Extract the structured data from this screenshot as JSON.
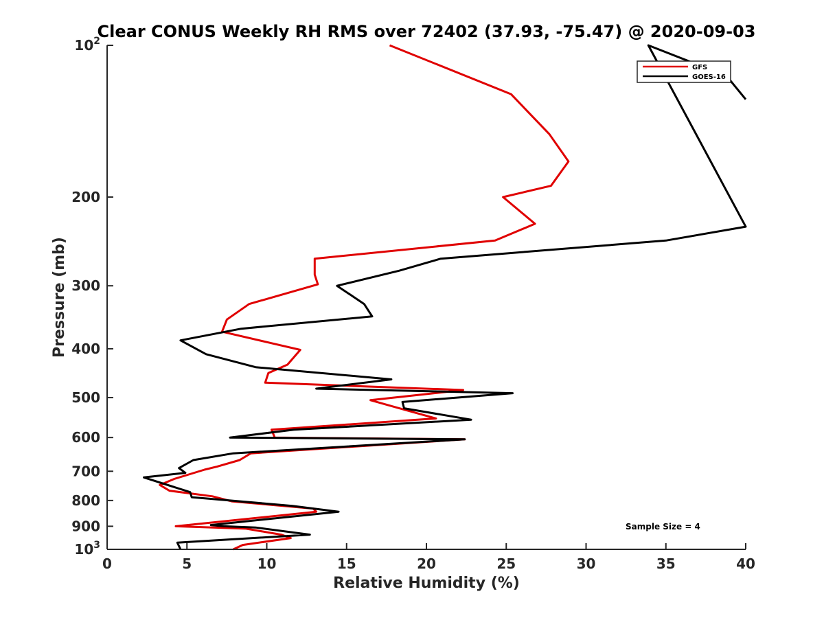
{
  "chart_data": {
    "type": "line",
    "title": "Clear CONUS Weekly RH RMS over 72402 (37.93, -75.47) @ 2020-09-03",
    "xlabel": "Relative Humidity (%)",
    "ylabel": "Pressure (mb)",
    "xlim": [
      0,
      40
    ],
    "ylim": [
      100,
      1000
    ],
    "yscale": "log",
    "y_reversed": true,
    "grid": false,
    "legend_position": "top-right",
    "x_ticks": [
      0,
      5,
      10,
      15,
      20,
      25,
      30,
      35,
      40
    ],
    "x_tick_labels": [
      "0",
      "5",
      "10",
      "15",
      "20",
      "25",
      "30",
      "35",
      "40"
    ],
    "y_ticks": [
      100,
      200,
      300,
      400,
      500,
      600,
      700,
      800,
      900,
      1000
    ],
    "y_tick_labels": [
      {
        "value": 100,
        "base": "10",
        "exp": "2"
      },
      {
        "value": 200,
        "base": "200",
        "exp": ""
      },
      {
        "value": 300,
        "base": "300",
        "exp": ""
      },
      {
        "value": 400,
        "base": "400",
        "exp": ""
      },
      {
        "value": 500,
        "base": "500",
        "exp": ""
      },
      {
        "value": 600,
        "base": "600",
        "exp": ""
      },
      {
        "value": 700,
        "base": "700",
        "exp": ""
      },
      {
        "value": 800,
        "base": "800",
        "exp": ""
      },
      {
        "value": 900,
        "base": "900",
        "exp": ""
      },
      {
        "value": 1000,
        "base": "10",
        "exp": "3"
      }
    ],
    "series": [
      {
        "name": "GFS",
        "color": "#e00000",
        "points": [
          [
            17.7,
            100
          ],
          [
            25.3,
            125
          ],
          [
            27.7,
            150
          ],
          [
            28.9,
            170
          ],
          [
            27.8,
            190
          ],
          [
            24.8,
            200
          ],
          [
            26.8,
            226
          ],
          [
            24.3,
            244
          ],
          [
            13.0,
            265
          ],
          [
            13.0,
            285
          ],
          [
            13.2,
            298
          ],
          [
            8.9,
            326
          ],
          [
            7.5,
            350
          ],
          [
            7.2,
            370
          ],
          [
            10.3,
            390
          ],
          [
            12.1,
            402
          ],
          [
            11.3,
            430
          ],
          [
            10.1,
            447
          ],
          [
            9.9,
            467
          ],
          [
            22.3,
            483
          ],
          [
            16.5,
            506
          ],
          [
            18.3,
            525
          ],
          [
            20.6,
            550
          ],
          [
            10.3,
            579
          ],
          [
            10.5,
            600
          ],
          [
            22.4,
            605
          ],
          [
            9.0,
            645
          ],
          [
            8.3,
            665
          ],
          [
            6.9,
            685
          ],
          [
            6.1,
            695
          ],
          [
            4.2,
            725
          ],
          [
            3.3,
            745
          ],
          [
            3.9,
            765
          ],
          [
            6.6,
            785
          ],
          [
            7.8,
            803
          ],
          [
            12.9,
            830
          ],
          [
            13.1,
            842
          ],
          [
            4.3,
            900
          ],
          [
            8.7,
            910
          ],
          [
            10.9,
            935
          ],
          [
            11.5,
            950
          ],
          [
            8.5,
            980
          ],
          [
            7.9,
            1000
          ]
        ]
      },
      {
        "name": "GOES-16",
        "color": "#000000",
        "points": [
          [
            40.0,
            128
          ],
          [
            38.8,
            115
          ],
          [
            33.9,
            100
          ],
          [
            40.0,
            229
          ],
          [
            35.0,
            244
          ],
          [
            20.9,
            265
          ],
          [
            18.3,
            280
          ],
          [
            14.4,
            300
          ],
          [
            16.1,
            326
          ],
          [
            16.6,
            345
          ],
          [
            8.4,
            365
          ],
          [
            4.6,
            385
          ],
          [
            6.2,
            410
          ],
          [
            9.3,
            435
          ],
          [
            17.8,
            460
          ],
          [
            13.1,
            480
          ],
          [
            25.4,
            490
          ],
          [
            18.5,
            510
          ],
          [
            18.6,
            525
          ],
          [
            22.8,
            553
          ],
          [
            11.7,
            579
          ],
          [
            7.7,
            600
          ],
          [
            22.4,
            605
          ],
          [
            7.9,
            645
          ],
          [
            5.4,
            665
          ],
          [
            4.5,
            690
          ],
          [
            4.9,
            705
          ],
          [
            2.3,
            720
          ],
          [
            5.2,
            770
          ],
          [
            5.3,
            788
          ],
          [
            7.7,
            800
          ],
          [
            11.6,
            820
          ],
          [
            14.5,
            842
          ],
          [
            6.5,
            895
          ],
          [
            7.3,
            900
          ],
          [
            9.3,
            905
          ],
          [
            12.7,
            935
          ],
          [
            4.4,
            970
          ],
          [
            4.6,
            1000
          ]
        ]
      }
    ],
    "annotations": [
      "Sample Size = 4"
    ]
  }
}
